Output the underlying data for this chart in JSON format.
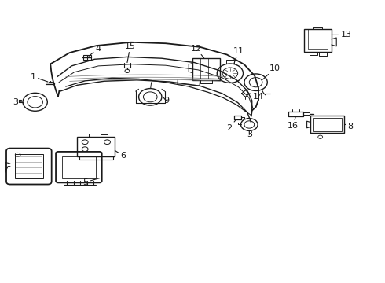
{
  "bg_color": "#ffffff",
  "line_color": "#1a1a1a",
  "lw_main": 1.3,
  "lw_thin": 0.7,
  "lw_med": 1.0,
  "figsize": [
    4.9,
    3.6
  ],
  "dpi": 100,
  "bumper_outer": {
    "x": [
      0.13,
      0.17,
      0.22,
      0.3,
      0.4,
      0.5,
      0.58,
      0.63,
      0.665,
      0.675,
      0.672
    ],
    "y": [
      0.78,
      0.83,
      0.855,
      0.865,
      0.86,
      0.845,
      0.815,
      0.775,
      0.73,
      0.68,
      0.63
    ]
  },
  "bumper_inner1": {
    "x": [
      0.14,
      0.18,
      0.24,
      0.33,
      0.43,
      0.52,
      0.59,
      0.635,
      0.66,
      0.665
    ],
    "y": [
      0.735,
      0.762,
      0.778,
      0.783,
      0.775,
      0.76,
      0.73,
      0.697,
      0.66,
      0.625
    ]
  },
  "bumper_inner2": {
    "x": [
      0.145,
      0.19,
      0.26,
      0.36,
      0.45,
      0.535,
      0.598,
      0.638,
      0.66,
      0.665
    ],
    "y": [
      0.715,
      0.738,
      0.752,
      0.755,
      0.748,
      0.732,
      0.703,
      0.671,
      0.638,
      0.605
    ]
  },
  "bumper_bottom": {
    "x": [
      0.15,
      0.2,
      0.28,
      0.37,
      0.46,
      0.54,
      0.6,
      0.638,
      0.66
    ],
    "y": [
      0.66,
      0.678,
      0.69,
      0.69,
      0.683,
      0.665,
      0.638,
      0.608,
      0.572
    ]
  },
  "bumper_left_edge": {
    "x": [
      0.13,
      0.135,
      0.14,
      0.145,
      0.15
    ],
    "y": [
      0.78,
      0.76,
      0.74,
      0.72,
      0.7
    ]
  },
  "label_fontsize": 8.0,
  "arrow_lw": 0.8
}
